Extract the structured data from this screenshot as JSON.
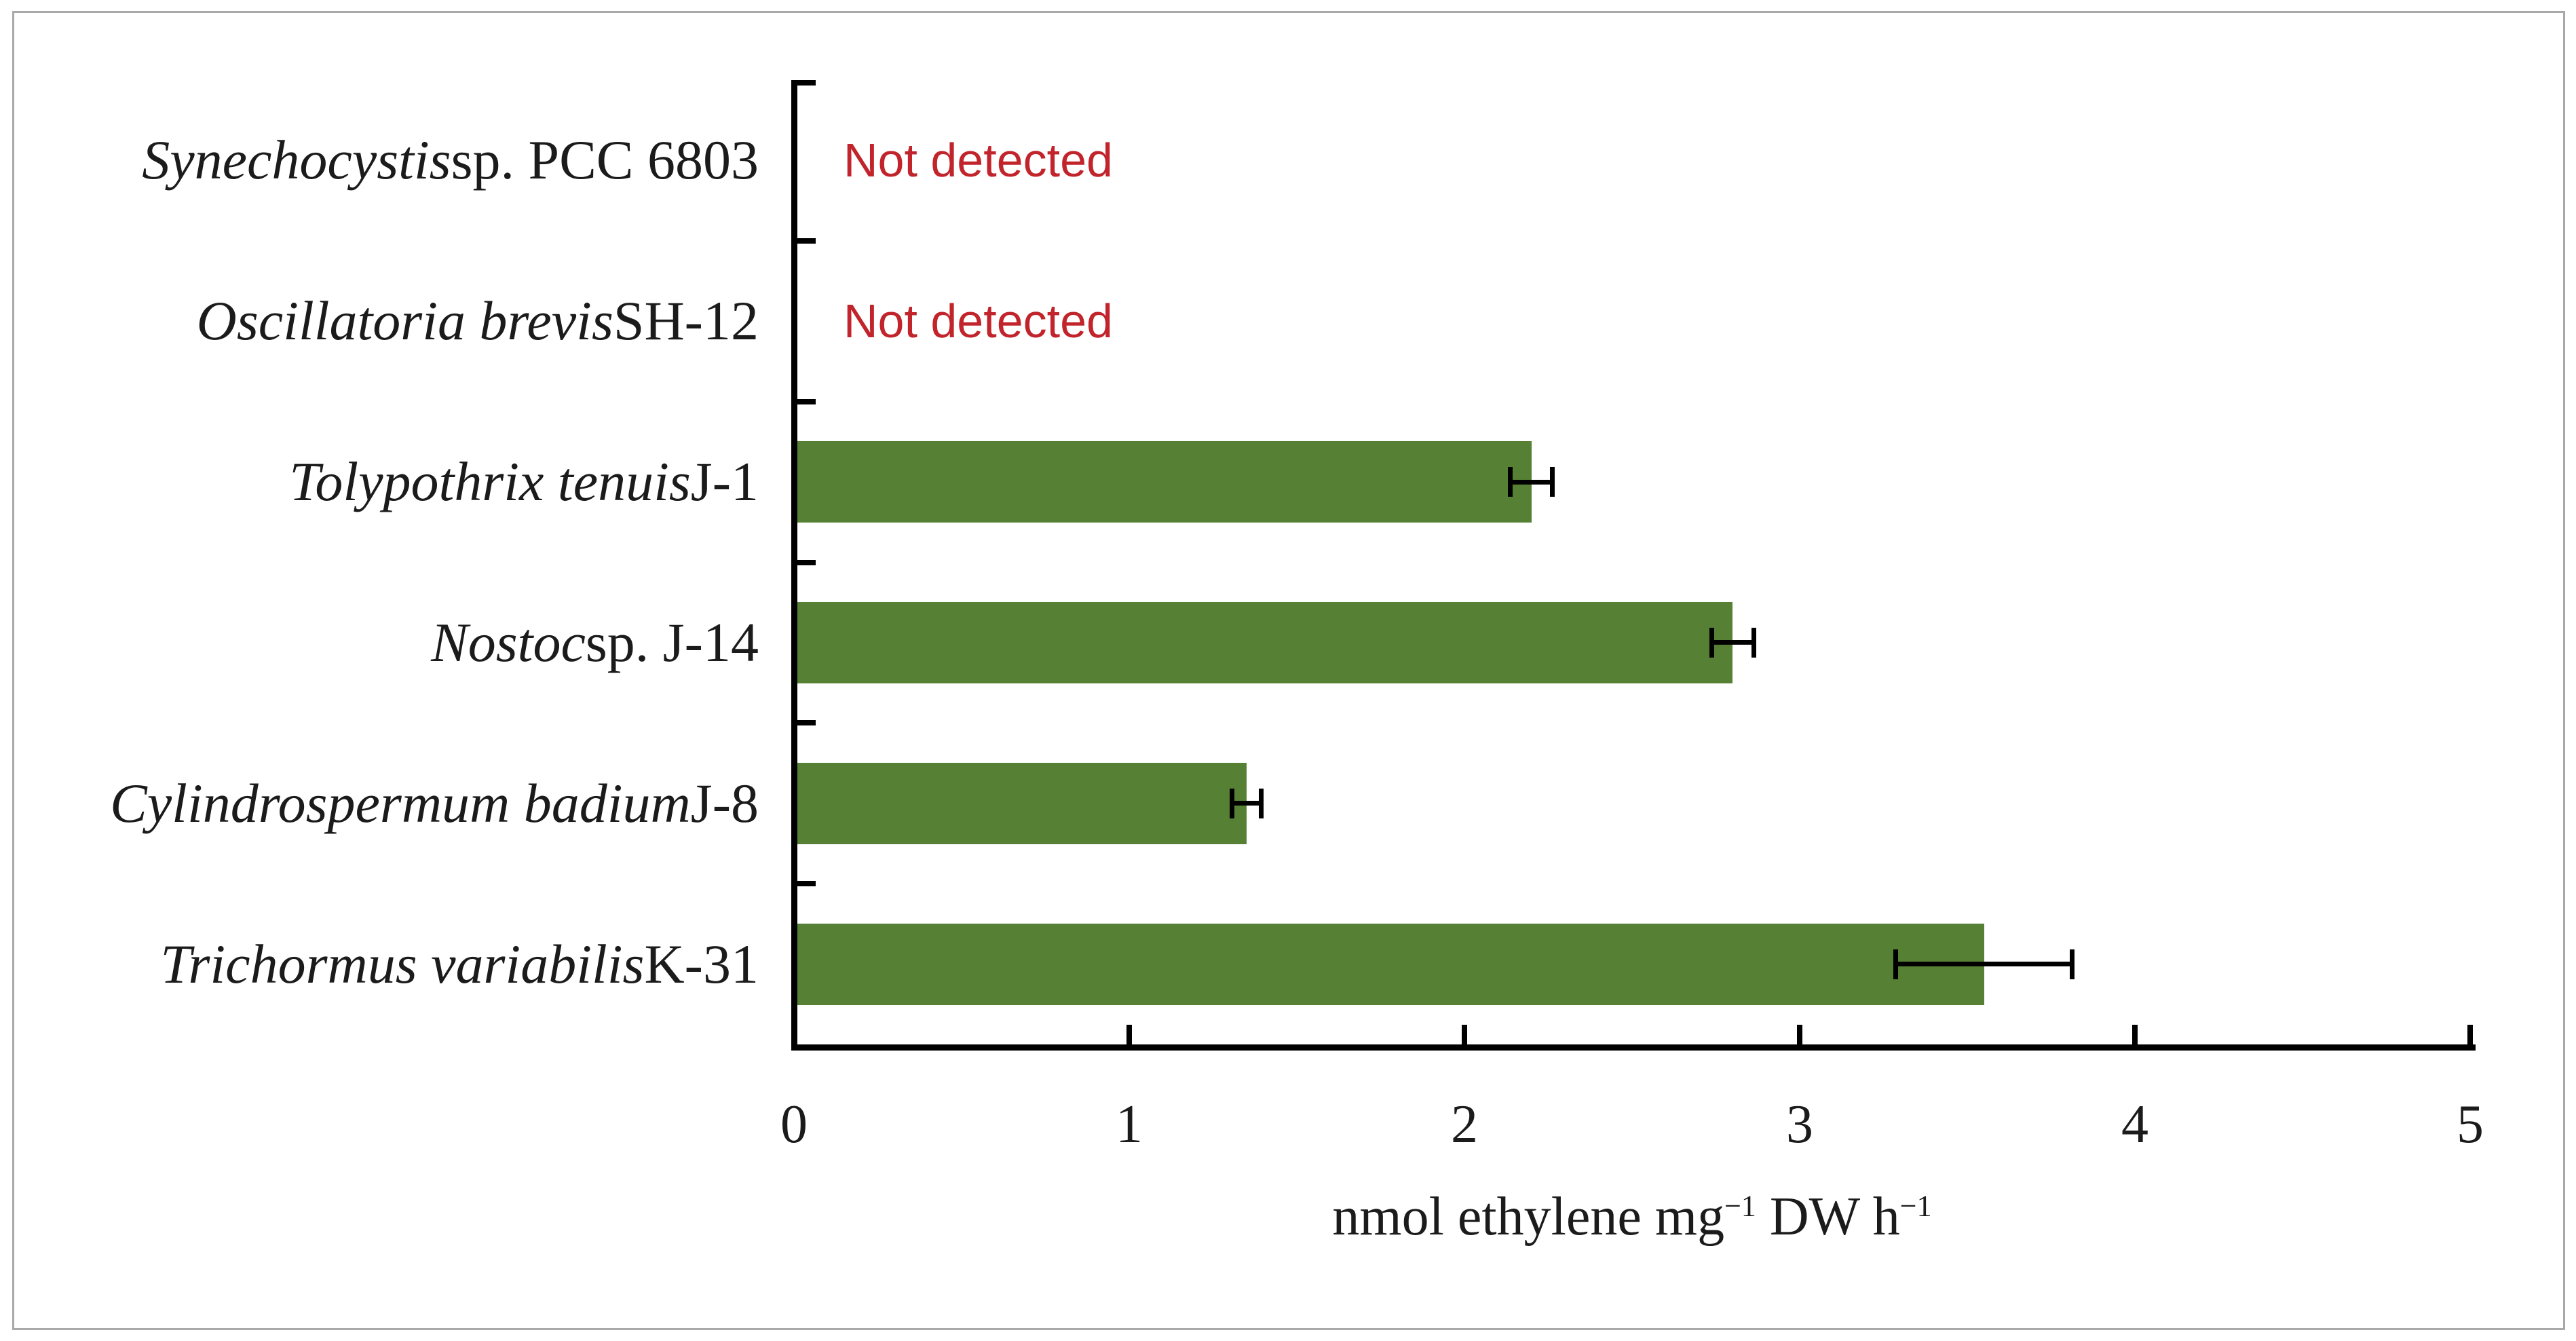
{
  "figure": {
    "background": "#FFFFFF",
    "border_color": "#A9A9A9"
  },
  "chart_data": {
    "type": "bar",
    "orientation": "horizontal",
    "title": "",
    "xlabel_parts": [
      "nmol ethylene mg",
      "−1",
      " DW h",
      "−1"
    ],
    "xlim": [
      0,
      5
    ],
    "x_ticks": [
      "0",
      "1",
      "2",
      "3",
      "4",
      "5"
    ],
    "grid": "off",
    "legend": "none",
    "bar_color": "#568135",
    "error_bar_color": "#000000",
    "not_detected_color": "#C1242B",
    "rows": [
      {
        "label_italic": "Synechocystis",
        "label_regular": " sp. PCC 6803",
        "value": null,
        "error": null,
        "note": "Not detected"
      },
      {
        "label_italic": "Oscillatoria brevis",
        "label_regular": " SH-12",
        "value": null,
        "error": null,
        "note": "Not detected"
      },
      {
        "label_italic": "Tolypothrix tenuis",
        "label_regular": " J-1",
        "value": 2.2,
        "error": 0.07,
        "note": ""
      },
      {
        "label_italic": "Nostoc",
        "label_regular": " sp. J-14",
        "value": 2.8,
        "error": 0.07,
        "note": ""
      },
      {
        "label_italic": "Cylindrospermum badium",
        "label_regular": " J-8",
        "value": 1.35,
        "error": 0.05,
        "note": ""
      },
      {
        "label_italic": "Trichormus variabilis",
        "label_regular": " K-31",
        "value": 3.55,
        "error": 0.27,
        "note": ""
      }
    ]
  }
}
